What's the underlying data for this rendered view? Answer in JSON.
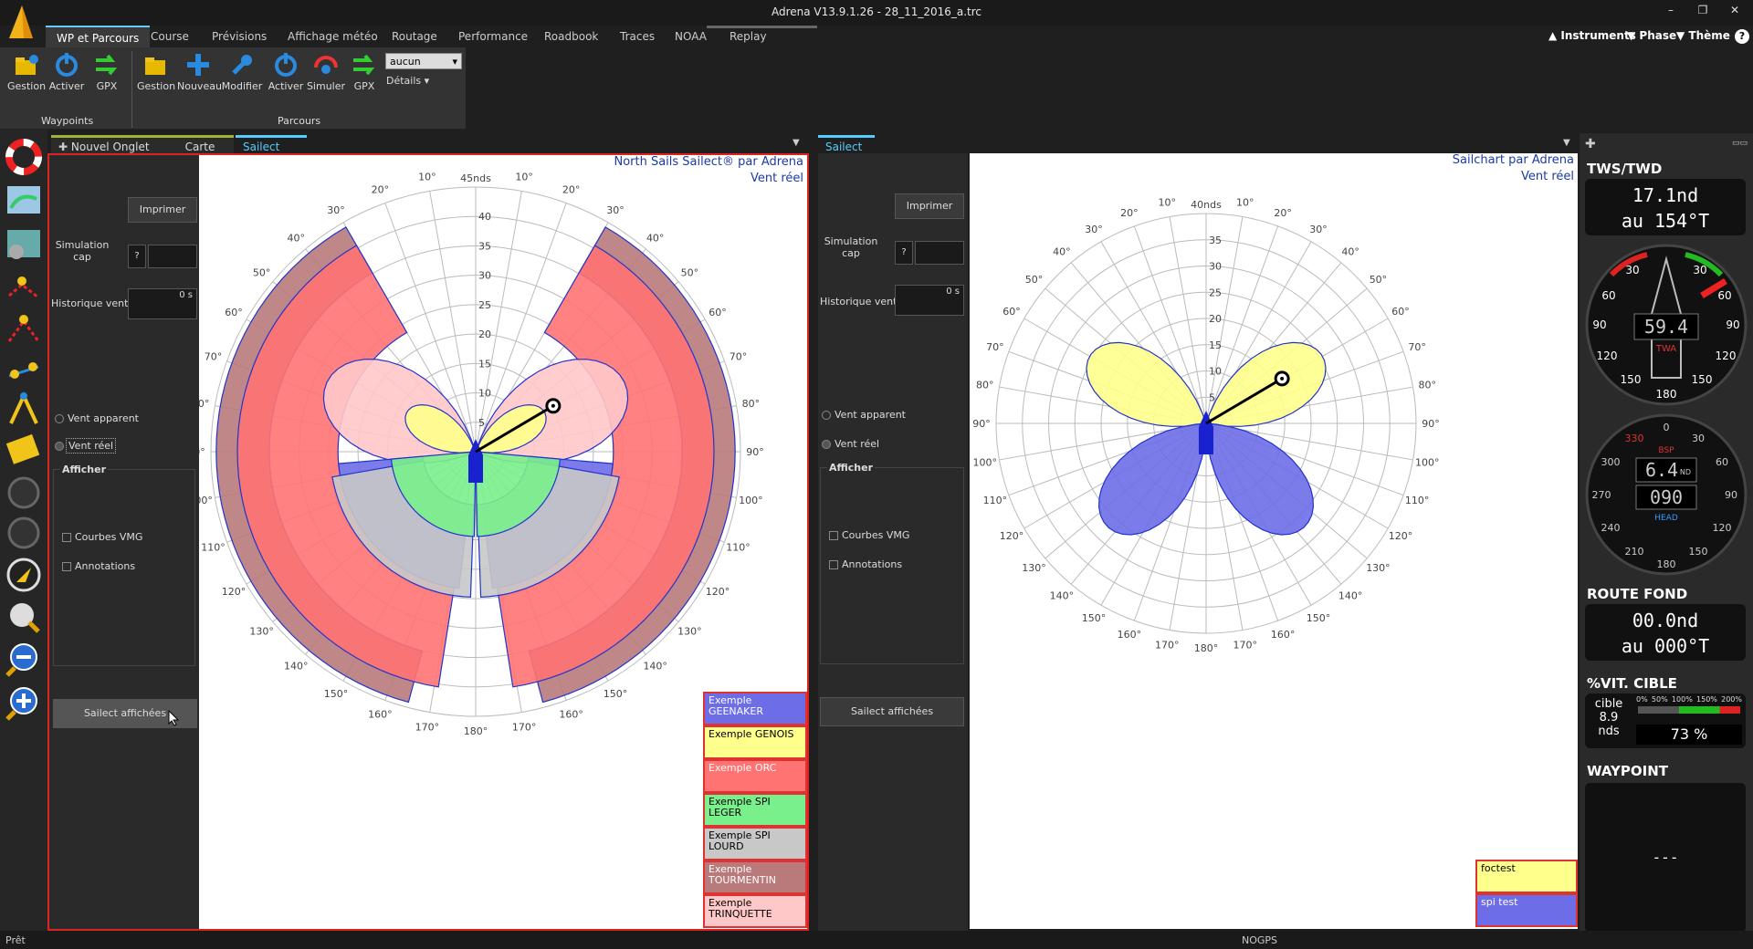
{
  "window": {
    "title": "Adrena V13.9.1.26 - 28_11_2016_a.trc",
    "minimize": "–",
    "restore": "❐",
    "close": "✕"
  },
  "menu": {
    "tabs": [
      "WP et Parcours",
      "Course",
      "Prévisions",
      "Affichage météo",
      "Routage",
      "Performance",
      "Roadbook",
      "Traces",
      "NOAA",
      "Replay"
    ],
    "active_index": 0,
    "right": [
      "Instruments",
      "Phase",
      "Thème"
    ],
    "help": "?"
  },
  "ribbon": {
    "waypoints": {
      "label": "Waypoints",
      "buttons": [
        "Gestion",
        "Activer",
        "GPX"
      ]
    },
    "parcours": {
      "label": "Parcours",
      "buttons": [
        "Gestion",
        "Nouveau",
        "Modifier",
        "Activer",
        "Simuler",
        "GPX"
      ]
    },
    "select_value": "aucun",
    "details_label": "Détails"
  },
  "tabs_left": {
    "items": [
      "Nouvel Onglet",
      "Carte",
      "Sailect"
    ],
    "selected": "Sailect",
    "close": "✕"
  },
  "tabs_right": {
    "items": [
      "Sailect"
    ],
    "close": "✕"
  },
  "left_panel": {
    "print": "Imprimer",
    "sim_label": "Simulation\ncap",
    "sim_q": "?",
    "hist_label": "Historique vent",
    "hist_value": "0 s",
    "radio_apparent": "Vent apparent",
    "radio_reel": "Vent réel",
    "group_afficher": "Afficher",
    "check_vmg": "Courbes VMG",
    "check_annot": "Annotations",
    "sailect_btn": "Sailect affichées",
    "header1": "North Sails Sailect® par Adrena",
    "header2": "Vent réel",
    "polar_speed_label": "45nds",
    "legend": [
      {
        "label": "Exemple GEENAKER",
        "color": "#6d6de8",
        "text_color": "#fff"
      },
      {
        "label": "Exemple GENOIS",
        "color": "#ffff8c",
        "text_color": "#000"
      },
      {
        "label": "Exemple ORC",
        "color": "#ff7373",
        "text_color": "#fff"
      },
      {
        "label": "Exemple SPI LEGER",
        "color": "#7af08c",
        "text_color": "#000"
      },
      {
        "label": "Exemple SPI LOURD",
        "color": "#c8c8c8",
        "text_color": "#000"
      },
      {
        "label": "Exemple TOURMENTIN",
        "color": "#b87a7a",
        "text_color": "#fff"
      },
      {
        "label": "Exemple TRINQUETTE",
        "color": "#ffc8c8",
        "text_color": "#000"
      }
    ]
  },
  "right_panel": {
    "print": "Imprimer",
    "sim_label": "Simulation\ncap",
    "sim_q": "?",
    "hist_label": "Historique vent",
    "hist_value": "0 s",
    "radio_apparent": "Vent apparent",
    "radio_reel": "Vent réel",
    "group_afficher": "Afficher",
    "check_vmg": "Courbes VMG",
    "check_annot": "Annotations",
    "sailect_btn": "Sailect affichées",
    "header1": "Sailchart par Adrena",
    "header2": "Vent réel",
    "polar_speed_label": "40nds",
    "legend": [
      {
        "label": "foctest",
        "color": "#ffff8c",
        "text_color": "#000"
      },
      {
        "label": "spi test",
        "color": "#6d6de8",
        "text_color": "#fff"
      }
    ]
  },
  "polar_left": {
    "rings": [
      "5",
      "10",
      "15",
      "20",
      "25",
      "30",
      "35",
      "40"
    ],
    "angles": [
      "10°",
      "20°",
      "30°",
      "40°",
      "50°",
      "60°",
      "70°",
      "80°",
      "90°",
      "100°",
      "110°",
      "120°",
      "130°",
      "140°",
      "150°",
      "160°",
      "170°",
      "180°"
    ]
  },
  "polar_right": {
    "rings": [
      "5",
      "10",
      "15",
      "20",
      "25",
      "30",
      "35"
    ],
    "angles": [
      "10°",
      "20°",
      "30°",
      "40°",
      "50°",
      "60°",
      "70°",
      "80°",
      "90°",
      "100°",
      "110°",
      "120°",
      "130°",
      "140°",
      "150°",
      "160°",
      "170°",
      "180°"
    ]
  },
  "instruments": {
    "tws_head": "TWS/TWD",
    "tws_speed": "17.1nd",
    "tws_dir": "au 154°T",
    "twa_value": "59.4",
    "twa_label": "TWA",
    "twa_ticks": [
      "30",
      "30",
      "60",
      "60",
      "90",
      "90",
      "120",
      "120",
      "150",
      "150",
      "180"
    ],
    "bsp_value": "6.4",
    "bsp_unit": "ND",
    "bsp_label": "BSP",
    "head_value": "090",
    "head_label": "HEAD",
    "bsp_ticks": [
      "0",
      "30",
      "60",
      "90",
      "120",
      "150",
      "180",
      "210",
      "240",
      "270",
      "300",
      "330"
    ],
    "route_head": "ROUTE FOND",
    "route_speed": "00.0nd",
    "route_dir": "au 000°T",
    "vit_head": "%VIT. CIBLE",
    "vit_cible": "cible",
    "vit_value": "8.9",
    "vit_unit": "nds",
    "vit_pct": "73 %",
    "vit_scale": [
      "0%",
      "50%",
      "100%",
      "150%",
      "200%"
    ],
    "wp_head": "WAYPOINT",
    "wp_value": "---"
  },
  "status": {
    "left": "Prêt",
    "center": "NOGPS"
  }
}
